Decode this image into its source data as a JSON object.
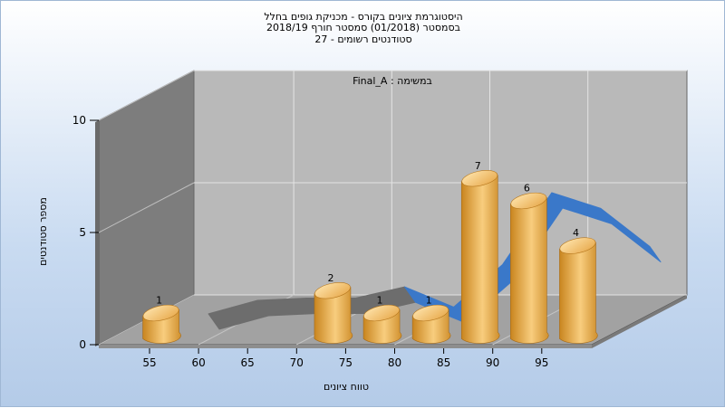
{
  "chart": {
    "title_lines": [
      "היסטוגרמת ציונים בקורס - מכניקת גופים בחלל",
      "בסמסטר  (01/2018)  סמסטר חורף 2018/19",
      "סטודנטים רשומים - 27"
    ],
    "task_label": "Final_A : במשימה",
    "colors": {
      "bar_light": "#f6c878",
      "bar_dark": "#c07c22",
      "ribbon": "#3a78c9",
      "ribbon_hidden": "#6d6d6d",
      "wall": "#7d7d7d",
      "back": "#b9b9b9",
      "floor": "#a2a2a2"
    }
  },
  "chart_data": {
    "type": "bar",
    "title": "היסטוגרמת ציונים בקורס - מכניקת גופים בחלל",
    "xlabel": "טווח ציונים",
    "ylabel": "מספר סטודנטים",
    "x_ticks": [
      "55",
      "60",
      "65",
      "70",
      "75",
      "80",
      "85",
      "90",
      "95"
    ],
    "y_ticks": [
      "0",
      "5",
      "10"
    ],
    "ylim": [
      0,
      10
    ],
    "bars": [
      {
        "x": 55,
        "value": 1
      },
      {
        "x": 72.5,
        "value": 2
      },
      {
        "x": 77.5,
        "value": 1
      },
      {
        "x": 82.5,
        "value": 1
      },
      {
        "x": 87.5,
        "value": 7
      },
      {
        "x": 92.5,
        "value": 6
      },
      {
        "x": 97.5,
        "value": 4
      }
    ],
    "curve": {
      "type": "smoothed distribution",
      "x": [
        55,
        60,
        65,
        70,
        75,
        80,
        85,
        90,
        95,
        100
      ],
      "y": [
        0.0,
        0.6,
        0.7,
        0.7,
        1.2,
        0.3,
        2.2,
        5.4,
        4.7,
        3.0
      ]
    },
    "grid": true
  }
}
